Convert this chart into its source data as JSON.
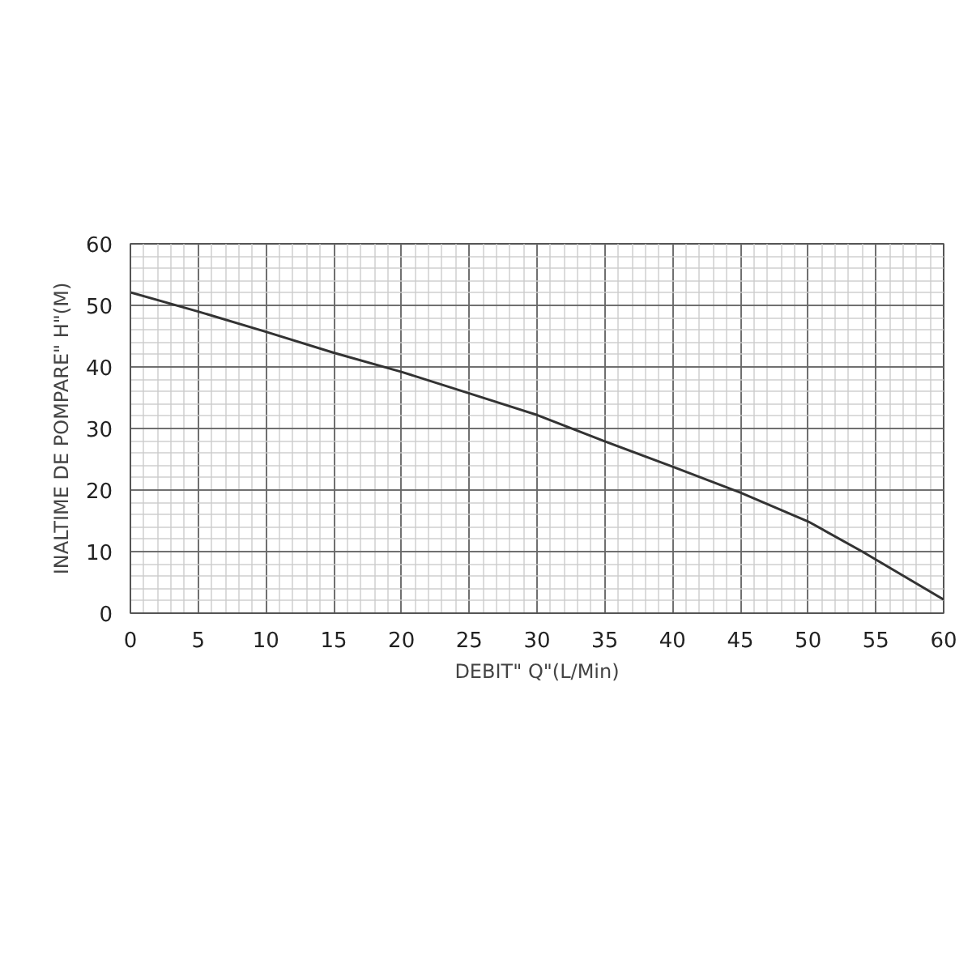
{
  "chart_data": {
    "type": "line",
    "xlabel": "DEBIT\" Q\"(L/Min)",
    "ylabel": "INALTIME DE POMPARE\" H\"(M)",
    "x": [
      0,
      5,
      10,
      15,
      20,
      25,
      30,
      35,
      40,
      45,
      50,
      54,
      60
    ],
    "series": [
      {
        "color": "#333333",
        "values": [
          52.1,
          49,
          45.7,
          42.3,
          39.2,
          35.7,
          32.2,
          27.9,
          23.8,
          19.6,
          14.9,
          10,
          2.2
        ]
      }
    ],
    "xlim": [
      0,
      60
    ],
    "ylim": [
      0,
      60
    ],
    "xticks": [
      0,
      5,
      10,
      15,
      20,
      25,
      30,
      35,
      40,
      45,
      50,
      55,
      60
    ],
    "yticks": [
      0,
      10,
      20,
      30,
      40,
      50,
      60
    ],
    "grid": true,
    "marker": "none",
    "line_style": "solid"
  }
}
